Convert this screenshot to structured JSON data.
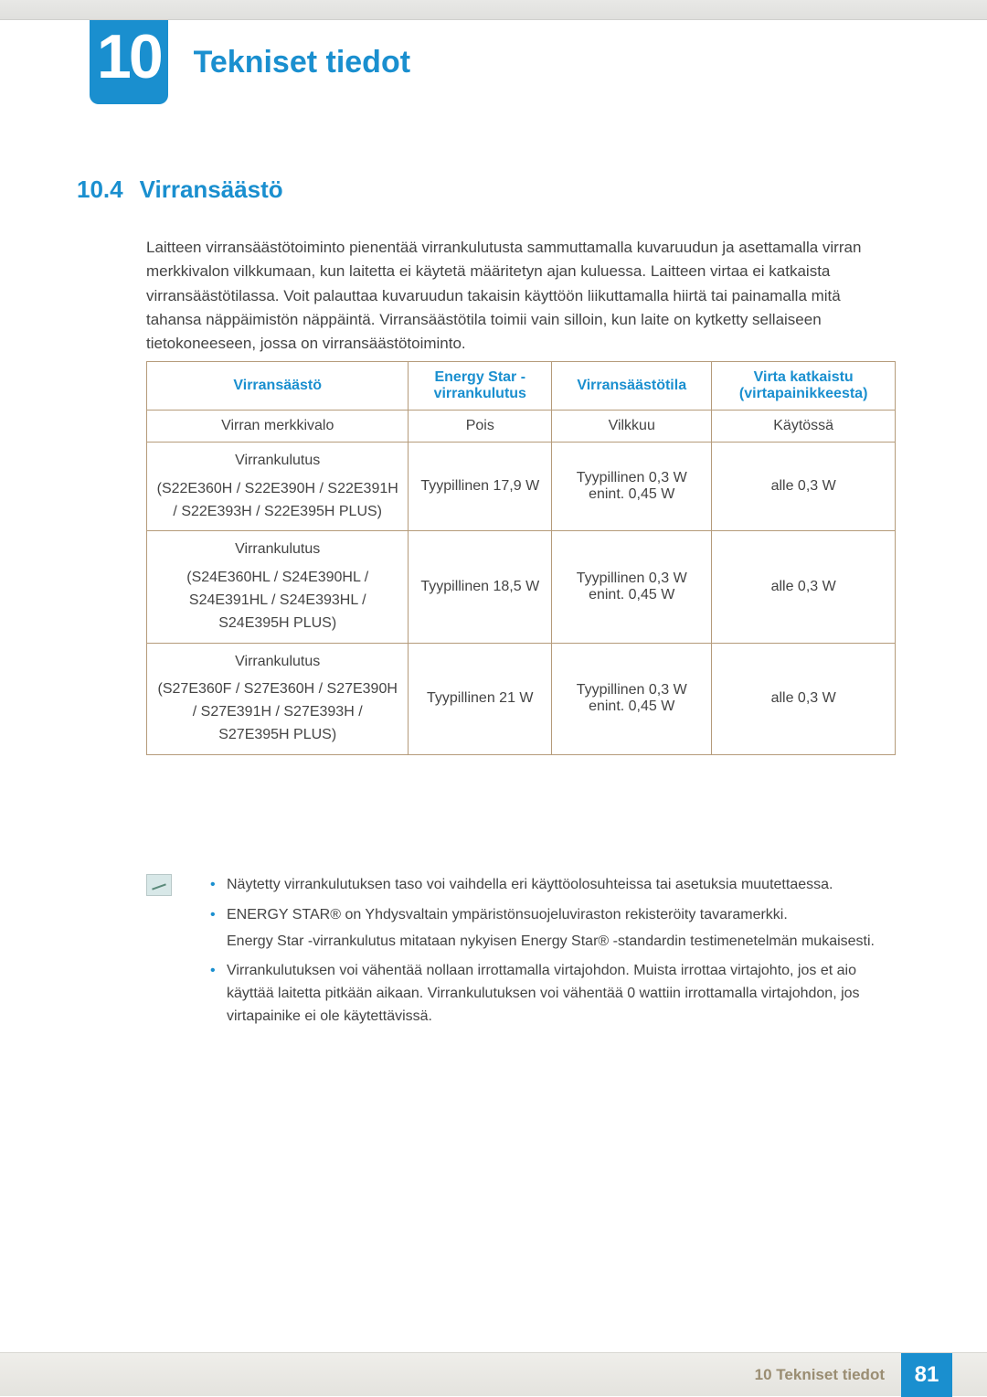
{
  "colors": {
    "accent": "#1a8fcf",
    "table_border": "#b59b7a",
    "text": "#444444",
    "footer_label": "#9a8d72",
    "top_band_bg": "#e4e3de"
  },
  "header": {
    "chapter_number": "10",
    "chapter_title": "Tekniset tiedot"
  },
  "section": {
    "number": "10.4",
    "title": "Virransäästö"
  },
  "intro_paragraph": "Laitteen virransäästötoiminto pienentää virrankulutusta sammuttamalla kuvaruudun ja asettamalla virran merkkivalon vilkkumaan, kun laitetta ei käytetä määritetyn ajan kuluessa. Laitteen virtaa ei katkaista virransäästötilassa. Voit palauttaa kuvaruudun takaisin käyttöön liikuttamalla hiirtä tai painamalla mitä tahansa näppäimistön näppäintä. Virransäästötila toimii vain silloin, kun laite on kytketty sellaiseen tietokoneeseen, jossa on virransäästötoiminto.",
  "table": {
    "columns": [
      "Virransäästö",
      "Energy Star -virrankulutus",
      "Virransäästötila",
      "Virta katkaistu (virtapainikkeesta)"
    ],
    "rows": [
      {
        "c0": "Virran merkkivalo",
        "c1": "Pois",
        "c2": "Vilkkuu",
        "c3": "Käytössä"
      },
      {
        "c0_label": "Virrankulutus",
        "c0_models": "(S22E360H / S22E390H / S22E391H / S22E393H / S22E395H PLUS)",
        "c1": "Tyypillinen 17,9 W",
        "c2": "Tyypillinen 0,3 W enint. 0,45 W",
        "c3": "alle 0,3 W"
      },
      {
        "c0_label": "Virrankulutus",
        "c0_models": "(S24E360HL / S24E390HL / S24E391HL / S24E393HL / S24E395H PLUS)",
        "c1": "Tyypillinen 18,5 W",
        "c2": "Tyypillinen 0,3 W enint. 0,45 W",
        "c3": "alle 0,3 W"
      },
      {
        "c0_label": "Virrankulutus",
        "c0_models": "(S27E360F / S27E360H / S27E390H / S27E391H / S27E393H / S27E395H PLUS)",
        "c1": "Tyypillinen 21 W",
        "c2": "Tyypillinen 0,3 W enint. 0,45 W",
        "c3": "alle 0,3 W"
      }
    ]
  },
  "notes": {
    "items": [
      {
        "text": "Näytetty virrankulutuksen taso voi vaihdella eri käyttöolosuhteissa tai asetuksia muutettaessa."
      },
      {
        "text": "ENERGY STAR® on Yhdysvaltain ympäristönsuojeluviraston rekisteröity tavaramerkki.",
        "sub": "Energy Star -virrankulutus mitataan nykyisen Energy Star® -standardin testimenetelmän mukaisesti."
      },
      {
        "text": "Virrankulutuksen voi vähentää nollaan irrottamalla virtajohdon. Muista irrottaa virtajohto, jos et aio käyttää laitetta pitkään aikaan. Virrankulutuksen voi vähentää 0 wattiin irrottamalla virtajohdon, jos virtapainike ei ole käytettävissä."
      }
    ]
  },
  "footer": {
    "label": "10 Tekniset tiedot",
    "page": "81"
  }
}
